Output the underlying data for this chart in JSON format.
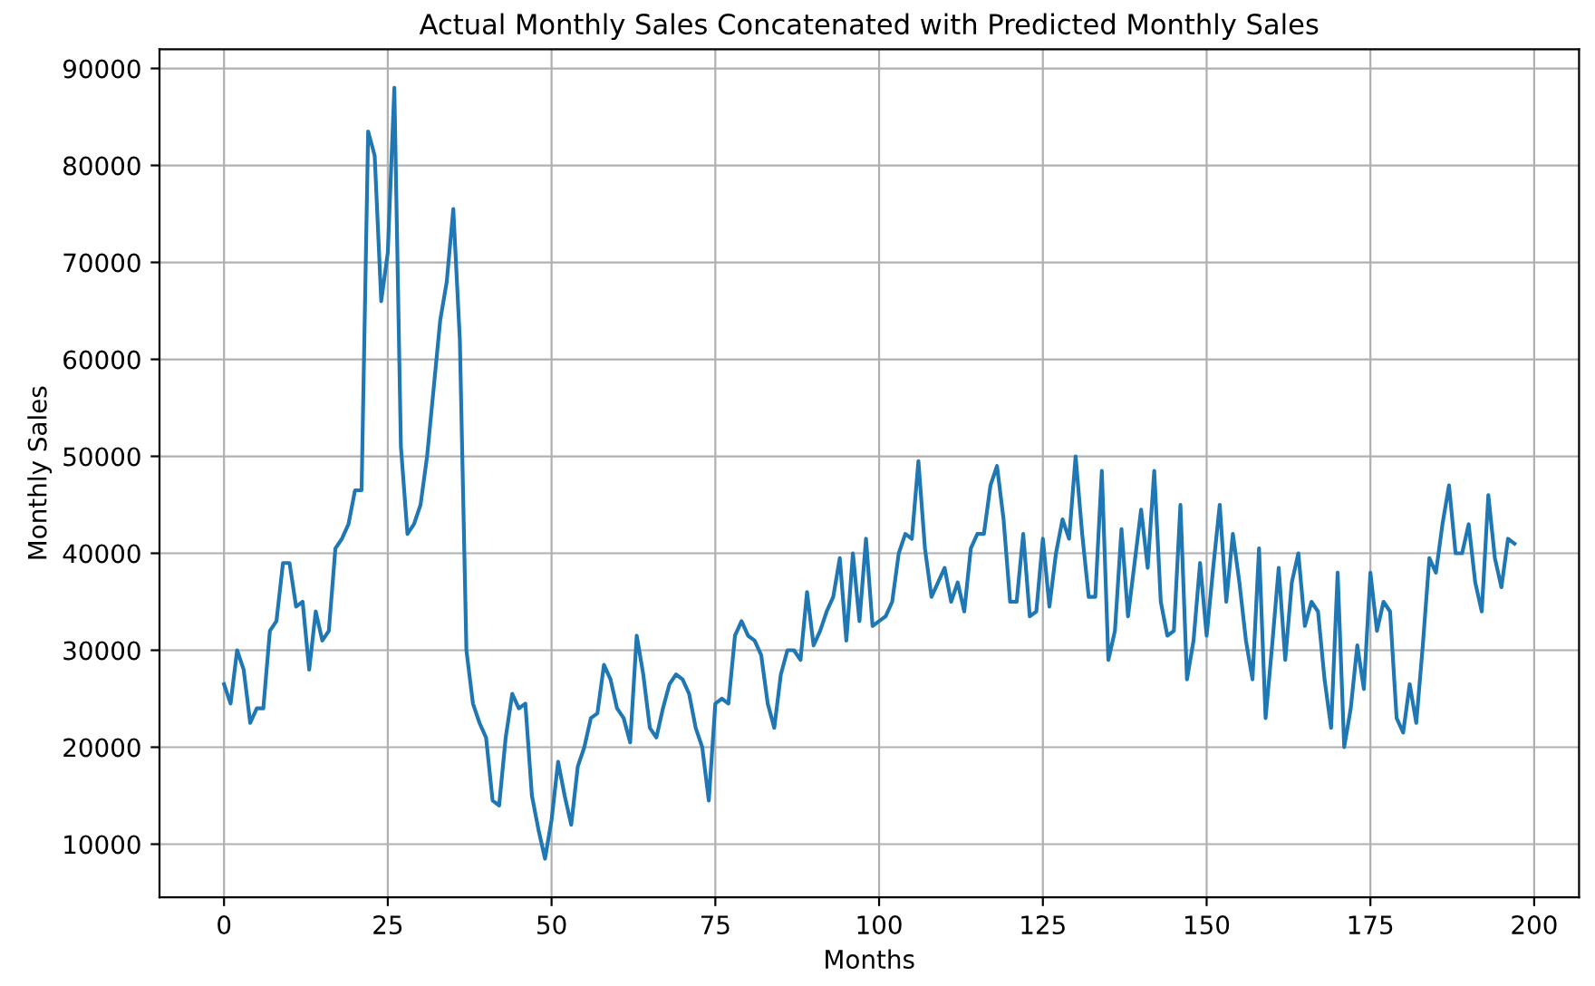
{
  "chart_data": {
    "type": "line",
    "title": "Actual Monthly Sales Concatenated with Predicted Monthly Sales",
    "xlabel": "Months",
    "ylabel": "Monthly Sales",
    "x": [
      0,
      1,
      2,
      3,
      4,
      5,
      6,
      7,
      8,
      9,
      10,
      11,
      12,
      13,
      14,
      15,
      16,
      17,
      18,
      19,
      20,
      21,
      22,
      23,
      24,
      25,
      26,
      27,
      28,
      29,
      30,
      31,
      32,
      33,
      34,
      35,
      36,
      37,
      38,
      39,
      40,
      41,
      42,
      43,
      44,
      45,
      46,
      47,
      48,
      49,
      50,
      51,
      52,
      53,
      54,
      55,
      56,
      57,
      58,
      59,
      60,
      61,
      62,
      63,
      64,
      65,
      66,
      67,
      68,
      69,
      70,
      71,
      72,
      73,
      74,
      75,
      76,
      77,
      78,
      79,
      80,
      81,
      82,
      83,
      84,
      85,
      86,
      87,
      88,
      89,
      90,
      91,
      92,
      93,
      94,
      95,
      96,
      97,
      98,
      99,
      100,
      101,
      102,
      103,
      104,
      105,
      106,
      107,
      108,
      109,
      110,
      111,
      112,
      113,
      114,
      115,
      116,
      117,
      118,
      119,
      120,
      121,
      122,
      123,
      124,
      125,
      126,
      127,
      128,
      129,
      130,
      131,
      132,
      133,
      134,
      135,
      136,
      137,
      138,
      139,
      140,
      141,
      142,
      143,
      144,
      145,
      146,
      147,
      148,
      149,
      150,
      151,
      152,
      153,
      154,
      155,
      156,
      157,
      158,
      159,
      160,
      161,
      162,
      163,
      164,
      165,
      166,
      167,
      168,
      169,
      170,
      171,
      172,
      173,
      174,
      175,
      176,
      177,
      178,
      179,
      180,
      181,
      182,
      183,
      184,
      185,
      186,
      187,
      188,
      189,
      190,
      191,
      192,
      193,
      194,
      195,
      196,
      197
    ],
    "series": [
      {
        "color": "#1f77b4",
        "values": [
          26500,
          24500,
          30000,
          28000,
          22500,
          24000,
          24000,
          32000,
          33000,
          39000,
          39000,
          34500,
          35000,
          28000,
          34000,
          31000,
          32000,
          40500,
          41500,
          43000,
          46500,
          46500,
          83500,
          81000,
          66000,
          71000,
          88000,
          51000,
          42000,
          43000,
          45000,
          50000,
          57000,
          64000,
          68000,
          75500,
          62000,
          30000,
          24500,
          22500,
          21000,
          14500,
          14000,
          21000,
          25500,
          24000,
          24500,
          15000,
          11500,
          8500,
          12500,
          18500,
          15000,
          12000,
          18000,
          20000,
          23000,
          23500,
          28500,
          27000,
          24000,
          23000,
          20500,
          31500,
          27500,
          22000,
          21000,
          24000,
          26500,
          27500,
          27000,
          25500,
          22000,
          20000,
          14500,
          24500,
          25000,
          24500,
          31500,
          33000,
          31500,
          31000,
          29500,
          24500,
          22000,
          27500,
          30000,
          30000,
          29000,
          36000,
          30500,
          32000,
          34000,
          35500,
          39500,
          31000,
          40000,
          33000,
          41500,
          32500,
          33000,
          33500,
          35000,
          40000,
          42000,
          41500,
          49500,
          40500,
          35500,
          37000,
          38500,
          35000,
          37000,
          34000,
          40500,
          42000,
          42000,
          47000,
          49000,
          43500,
          35000,
          35000,
          42000,
          33500,
          34000,
          41500,
          34500,
          40000,
          43500,
          41500,
          50000,
          42000,
          35500,
          35500,
          48500,
          29000,
          32000,
          42500,
          33500,
          39000,
          44500,
          38500,
          48500,
          35000,
          31500,
          32000,
          45000,
          27000,
          31000,
          39000,
          31500,
          38500,
          45000,
          35000,
          42000,
          37000,
          31000,
          27000,
          40500,
          23000,
          30500,
          38500,
          29000,
          37000,
          40000,
          32500,
          35000,
          34000,
          27000,
          22000,
          38000,
          20000,
          24000,
          30500,
          26000,
          38000,
          32000,
          35000,
          34000,
          23000,
          21500,
          26500,
          22500,
          30500,
          39500,
          38000,
          43000,
          47000,
          40000,
          40000,
          43000,
          37000,
          34000,
          46000,
          39500,
          36500,
          41500,
          41000
        ]
      }
    ],
    "xlim": [
      -9.85,
      206.85
    ],
    "ylim": [
      4525,
      91975
    ],
    "xticks": [
      0,
      25,
      50,
      75,
      100,
      125,
      150,
      175,
      200
    ],
    "yticks": [
      10000,
      20000,
      30000,
      40000,
      50000,
      60000,
      70000,
      80000,
      90000
    ],
    "grid": true
  }
}
